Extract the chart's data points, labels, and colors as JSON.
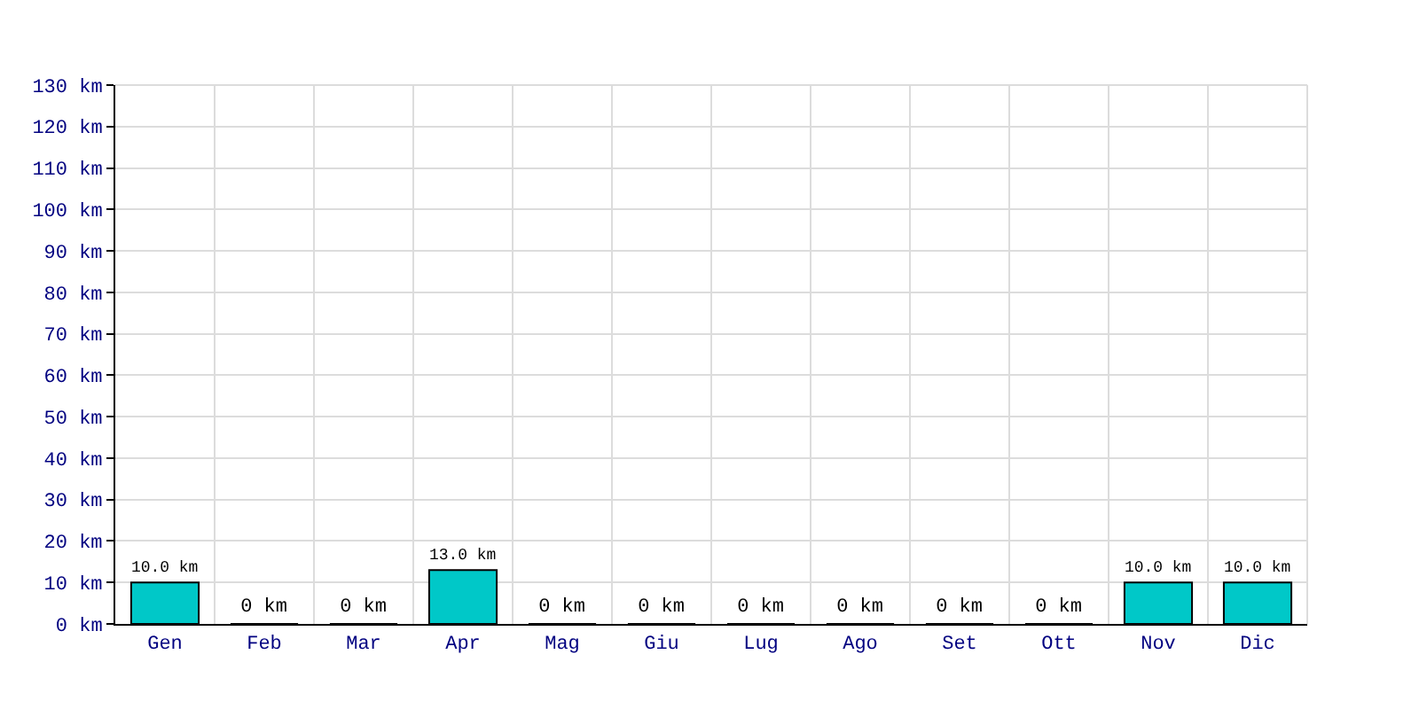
{
  "chart_data": {
    "type": "bar",
    "categories": [
      "Gen",
      "Feb",
      "Mar",
      "Apr",
      "Mag",
      "Giu",
      "Lug",
      "Ago",
      "Set",
      "Ott",
      "Nov",
      "Dic"
    ],
    "values": [
      10,
      0,
      0,
      13,
      0,
      0,
      0,
      0,
      0,
      0,
      10,
      10
    ],
    "value_labels": [
      "10.0 km",
      "0 km",
      "0 km",
      "13.0 km",
      "0 km",
      "0 km",
      "0 km",
      "0 km",
      "0 km",
      "0 km",
      "10.0 km",
      "10.0 km"
    ],
    "color": "#00c8c8",
    "ylim": [
      0,
      130
    ],
    "yticks": [
      {
        "value": 0,
        "label": "0 km"
      },
      {
        "value": 10,
        "label": "10 km"
      },
      {
        "value": 20,
        "label": "20 km"
      },
      {
        "value": 30,
        "label": "30 km"
      },
      {
        "value": 40,
        "label": "40 km"
      },
      {
        "value": 50,
        "label": "50 km"
      },
      {
        "value": 60,
        "label": "60 km"
      },
      {
        "value": 70,
        "label": "70 km"
      },
      {
        "value": 80,
        "label": "80 km"
      },
      {
        "value": 90,
        "label": "90 km"
      },
      {
        "value": 100,
        "label": "100 km"
      },
      {
        "value": 110,
        "label": "110 km"
      },
      {
        "value": 120,
        "label": "120 km"
      },
      {
        "value": 130,
        "label": "130 km"
      }
    ],
    "grid": true,
    "legend": false
  }
}
